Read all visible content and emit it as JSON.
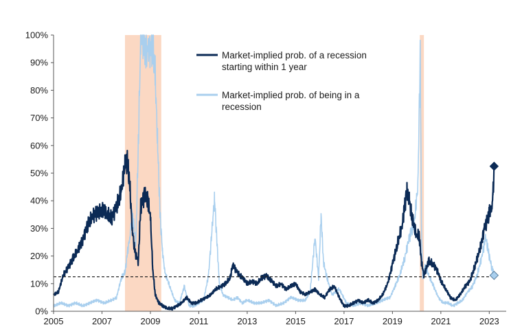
{
  "chart_data": {
    "type": "line",
    "title": "",
    "xlabel": "",
    "ylabel": "",
    "xlim": [
      2005.0,
      2023.7
    ],
    "ylim": [
      0,
      100
    ],
    "x_ticks": [
      "2005",
      "2007",
      "2009",
      "2011",
      "2013",
      "2015",
      "2017",
      "2019",
      "2021",
      "2023"
    ],
    "x_tick_values": [
      2005,
      2007,
      2009,
      2011,
      2013,
      2015,
      2017,
      2019,
      2021,
      2023
    ],
    "y_ticks": [
      "0%",
      "10%",
      "20%",
      "30%",
      "40%",
      "50%",
      "60%",
      "70%",
      "80%",
      "90%",
      "100%"
    ],
    "y_tick_values": [
      0,
      10,
      20,
      30,
      40,
      50,
      60,
      70,
      80,
      90,
      100
    ],
    "grid": false,
    "legend_position": "top-center",
    "recession_shading": [
      {
        "start": 2007.95,
        "end": 2009.45,
        "color": "#fbd8c3"
      },
      {
        "start": 2020.13,
        "end": 2020.3,
        "color": "#fbd8c3"
      }
    ],
    "reference_line": {
      "y": 12.5,
      "style": "dashed",
      "color": "#222222"
    },
    "series": [
      {
        "name": "Market-implied prob. of a recession starting within 1 year",
        "color": "#0b2a55",
        "x": [
          2005.0,
          2005.2,
          2005.4,
          2005.6,
          2005.8,
          2006.0,
          2006.2,
          2006.4,
          2006.6,
          2006.8,
          2007.0,
          2007.2,
          2007.4,
          2007.6,
          2007.8,
          2007.95,
          2008.05,
          2008.15,
          2008.25,
          2008.35,
          2008.5,
          2008.6,
          2008.75,
          2008.9,
          2009.0,
          2009.1,
          2009.2,
          2009.35,
          2009.5,
          2009.7,
          2009.9,
          2010.1,
          2010.3,
          2010.5,
          2010.7,
          2010.9,
          2011.1,
          2011.3,
          2011.5,
          2011.7,
          2011.9,
          2012.1,
          2012.3,
          2012.4,
          2012.6,
          2012.8,
          2013.0,
          2013.2,
          2013.4,
          2013.6,
          2013.8,
          2014.0,
          2014.2,
          2014.4,
          2014.6,
          2014.8,
          2015.0,
          2015.2,
          2015.4,
          2015.6,
          2015.8,
          2016.0,
          2016.2,
          2016.4,
          2016.6,
          2016.8,
          2017.0,
          2017.2,
          2017.4,
          2017.6,
          2017.8,
          2018.0,
          2018.2,
          2018.4,
          2018.6,
          2018.8,
          2019.0,
          2019.2,
          2019.4,
          2019.5,
          2019.6,
          2019.7,
          2019.8,
          2020.0,
          2020.1,
          2020.2,
          2020.3,
          2020.5,
          2020.7,
          2020.9,
          2021.0,
          2021.2,
          2021.4,
          2021.6,
          2021.8,
          2022.0,
          2022.2,
          2022.4,
          2022.6,
          2022.8,
          2023.0,
          2023.1,
          2023.15,
          2023.2
        ],
        "values": [
          6,
          7,
          13,
          16,
          19,
          22,
          26,
          31,
          34,
          36,
          37,
          35,
          34,
          38,
          43,
          53,
          54,
          45,
          30,
          22,
          18,
          38,
          42,
          40,
          34,
          15,
          6,
          3,
          2,
          1,
          1,
          2,
          3,
          5,
          3,
          3,
          4,
          5,
          6,
          8,
          9,
          10,
          12,
          17,
          14,
          12,
          10,
          11,
          10,
          12,
          13,
          11,
          9,
          10,
          8,
          9,
          10,
          7,
          6,
          7,
          8,
          6,
          5,
          8,
          9,
          5,
          2,
          2,
          3,
          4,
          3,
          4,
          3,
          4,
          6,
          10,
          17,
          24,
          31,
          38,
          44,
          40,
          34,
          27,
          28,
          18,
          13,
          18,
          17,
          14,
          11,
          8,
          5,
          4,
          6,
          9,
          11,
          16,
          22,
          30,
          35,
          38,
          41,
          52
        ]
      },
      {
        "name": "Market-implied prob. of being in a recession",
        "color": "#a9cfee",
        "x": [
          2005.0,
          2005.3,
          2005.6,
          2005.9,
          2006.2,
          2006.5,
          2006.8,
          2007.1,
          2007.4,
          2007.6,
          2007.8,
          2007.95,
          2008.05,
          2008.15,
          2008.25,
          2008.4,
          2008.5,
          2008.6,
          2008.7,
          2008.8,
          2008.9,
          2009.0,
          2009.1,
          2009.2,
          2009.3,
          2009.4,
          2009.5,
          2009.6,
          2009.8,
          2010.0,
          2010.2,
          2010.4,
          2010.6,
          2010.8,
          2011.0,
          2011.2,
          2011.4,
          2011.55,
          2011.65,
          2011.75,
          2011.85,
          2012.0,
          2012.2,
          2012.4,
          2012.6,
          2012.8,
          2013.0,
          2013.3,
          2013.6,
          2013.9,
          2014.2,
          2014.5,
          2014.8,
          2015.1,
          2015.4,
          2015.6,
          2015.8,
          2015.95,
          2016.05,
          2016.15,
          2016.3,
          2016.5,
          2016.8,
          2017.1,
          2017.4,
          2017.7,
          2018.0,
          2018.3,
          2018.6,
          2018.9,
          2019.1,
          2019.3,
          2019.5,
          2019.7,
          2019.9,
          2020.05,
          2020.15,
          2020.2,
          2020.25,
          2020.35,
          2020.5,
          2020.7,
          2020.9,
          2021.1,
          2021.3,
          2021.5,
          2021.7,
          2021.9,
          2022.1,
          2022.3,
          2022.5,
          2022.7,
          2022.85,
          2022.95,
          2023.1,
          2023.2
        ],
        "values": [
          2,
          3,
          2,
          3,
          2,
          3,
          4,
          3,
          4,
          5,
          12,
          14,
          21,
          27,
          35,
          25,
          60,
          99,
          99,
          96,
          93,
          97,
          95,
          85,
          60,
          35,
          22,
          14,
          9,
          4,
          3,
          9,
          2,
          2,
          3,
          4,
          13,
          30,
          41,
          25,
          10,
          6,
          5,
          4,
          5,
          3,
          4,
          3,
          3,
          4,
          2,
          3,
          5,
          4,
          4,
          7,
          27,
          12,
          35,
          18,
          12,
          6,
          8,
          3,
          2,
          3,
          2,
          3,
          4,
          5,
          9,
          13,
          19,
          27,
          32,
          45,
          94,
          30,
          12,
          17,
          13,
          9,
          5,
          3,
          3,
          2,
          3,
          4,
          7,
          9,
          13,
          20,
          27,
          22,
          16,
          13
        ]
      }
    ],
    "end_markers": [
      {
        "series": 0,
        "x": 2023.2,
        "y": 52.5,
        "shape": "diamond",
        "color": "#0b2a55"
      },
      {
        "series": 1,
        "x": 2023.2,
        "y": 13,
        "shape": "diamond",
        "color": "#a9cfee"
      }
    ]
  }
}
